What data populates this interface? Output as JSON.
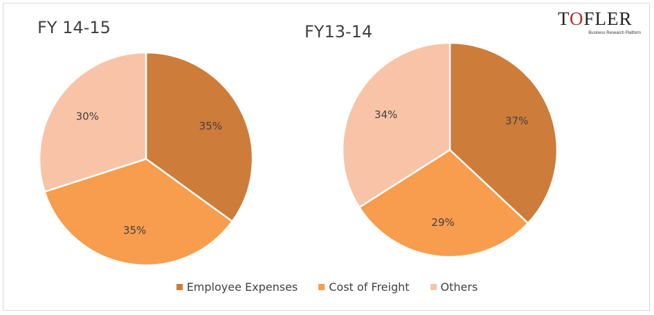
{
  "logo": {
    "word": "TOFLER",
    "tagline": "Business Research Platform"
  },
  "legend": [
    {
      "label": "Employee Expenses",
      "color": "#cd7c3a"
    },
    {
      "label": "Cost of Freight",
      "color": "#f79d4d"
    },
    {
      "label": "Others",
      "color": "#f8c3a7"
    }
  ],
  "chart_data": [
    {
      "type": "pie",
      "title": "FY 14-15",
      "categories": [
        "Employee Expenses",
        "Cost of Freight",
        "Others"
      ],
      "values": [
        35,
        35,
        30
      ],
      "labels": [
        "35%",
        "35%",
        "30%"
      ],
      "colors": [
        "#cd7c3a",
        "#f79d4d",
        "#f8c3a7"
      ]
    },
    {
      "type": "pie",
      "title": "FY13-14",
      "categories": [
        "Employee Expenses",
        "Cost of Freight",
        "Others"
      ],
      "values": [
        37,
        29,
        34
      ],
      "labels": [
        "37%",
        "29%",
        "34%"
      ],
      "colors": [
        "#cd7c3a",
        "#f79d4d",
        "#f8c3a7"
      ]
    }
  ]
}
